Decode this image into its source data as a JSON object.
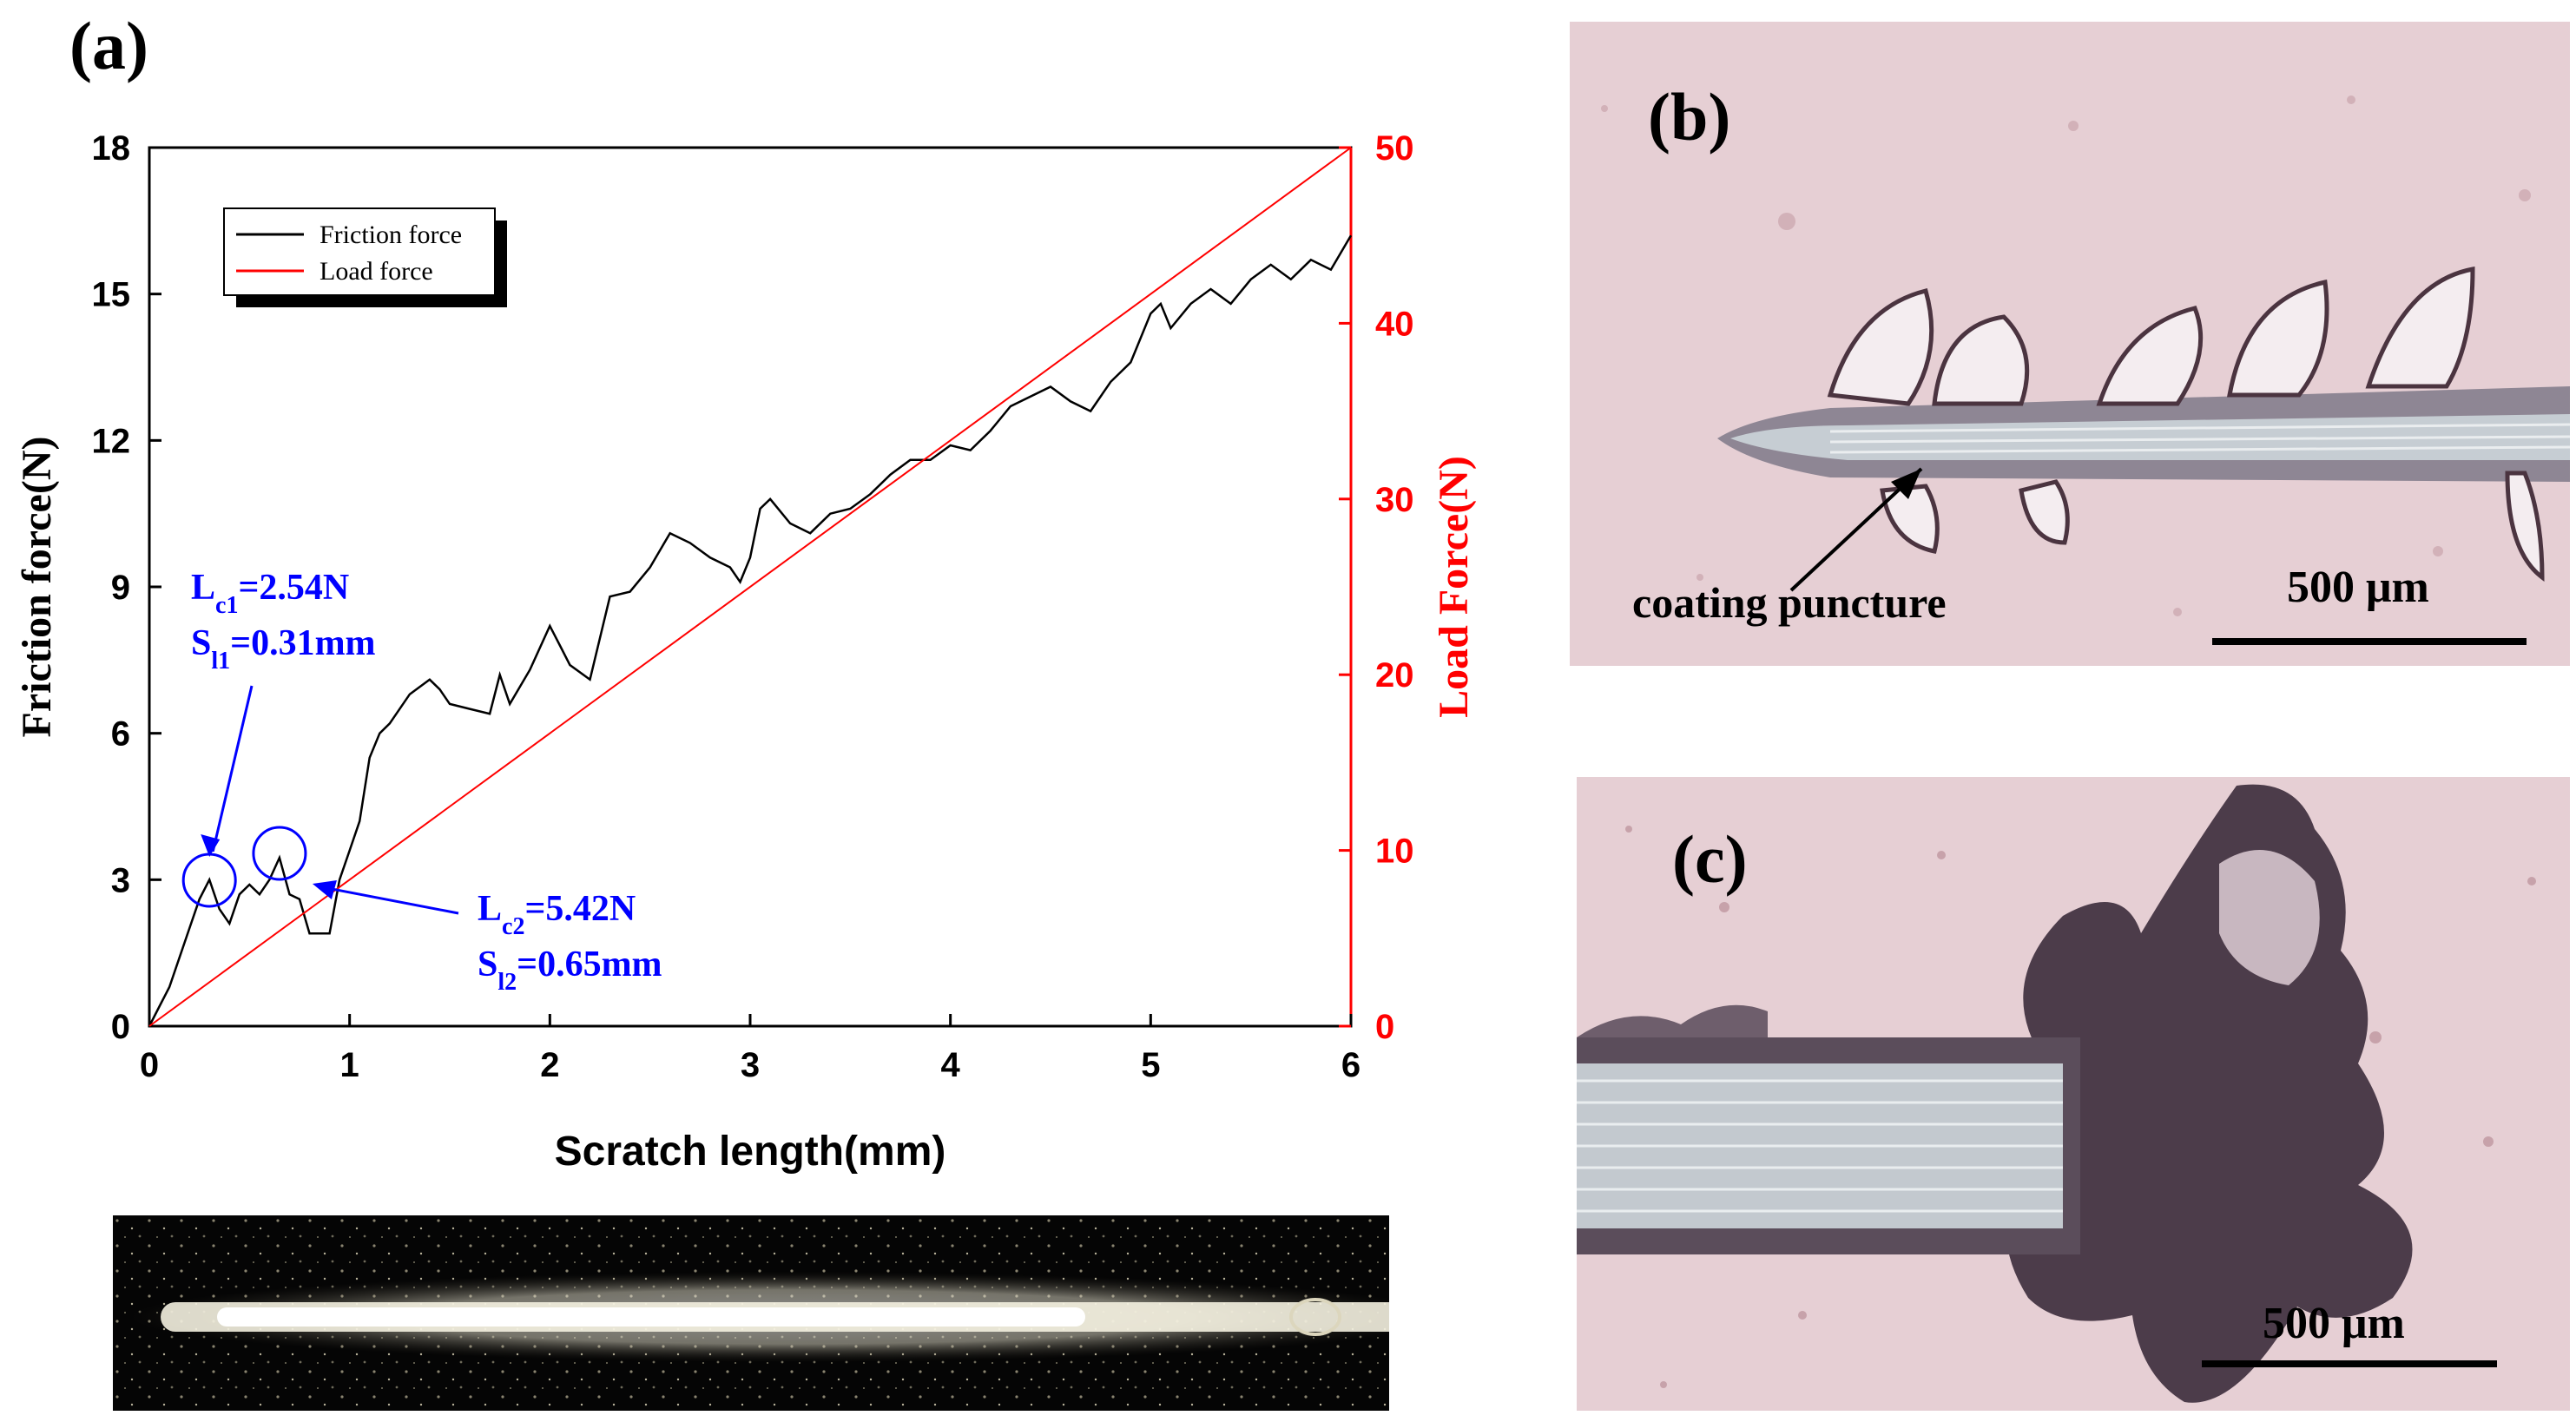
{
  "panels": {
    "a": "(a)",
    "b": "(b)",
    "c": "(c)"
  },
  "chart_data": {
    "type": "line",
    "xlabel": "Scratch length(mm)",
    "ylabel_left": "Friction force(N)",
    "ylabel_right": "Load Force(N)",
    "xlim": [
      0,
      6
    ],
    "ylim_left": [
      0,
      18
    ],
    "ylim_right": [
      0,
      50
    ],
    "xticks": [
      "0",
      "1",
      "2",
      "3",
      "4",
      "5",
      "6"
    ],
    "yticks_left": [
      "0",
      "3",
      "6",
      "9",
      "12",
      "15",
      "18"
    ],
    "yticks_right": [
      "0",
      "10",
      "20",
      "30",
      "40",
      "50"
    ],
    "legend_placement": "top-left",
    "series": [
      {
        "name": "Friction force",
        "color": "#000000",
        "axis": "left",
        "x": [
          0,
          0.05,
          0.1,
          0.15,
          0.2,
          0.25,
          0.3,
          0.35,
          0.4,
          0.45,
          0.5,
          0.55,
          0.6,
          0.65,
          0.7,
          0.75,
          0.8,
          0.85,
          0.9,
          0.95,
          1.0,
          1.05,
          1.1,
          1.15,
          1.2,
          1.3,
          1.4,
          1.45,
          1.5,
          1.6,
          1.7,
          1.75,
          1.8,
          1.9,
          2.0,
          2.05,
          2.1,
          2.2,
          2.3,
          2.4,
          2.5,
          2.6,
          2.7,
          2.8,
          2.9,
          2.95,
          3.0,
          3.05,
          3.1,
          3.2,
          3.3,
          3.4,
          3.5,
          3.6,
          3.7,
          3.8,
          3.9,
          4.0,
          4.1,
          4.2,
          4.3,
          4.4,
          4.5,
          4.6,
          4.7,
          4.8,
          4.9,
          5.0,
          5.05,
          5.1,
          5.2,
          5.3,
          5.4,
          5.5,
          5.6,
          5.7,
          5.8,
          5.9,
          6.0
        ],
        "y": [
          0,
          0.4,
          0.8,
          1.4,
          2.0,
          2.6,
          3.0,
          2.4,
          2.1,
          2.7,
          2.9,
          2.7,
          3.0,
          3.45,
          2.7,
          2.6,
          1.9,
          1.9,
          1.9,
          3.0,
          3.6,
          4.2,
          5.5,
          6.0,
          6.2,
          6.8,
          7.1,
          6.9,
          6.6,
          6.5,
          6.4,
          7.2,
          6.6,
          7.3,
          8.2,
          7.8,
          7.4,
          7.1,
          8.8,
          8.9,
          9.4,
          10.1,
          9.9,
          9.6,
          9.4,
          9.1,
          9.6,
          10.6,
          10.8,
          10.3,
          10.1,
          10.5,
          10.6,
          10.9,
          11.3,
          11.6,
          11.6,
          11.9,
          11.8,
          12.2,
          12.7,
          12.9,
          13.1,
          12.8,
          12.6,
          13.2,
          13.6,
          14.6,
          14.8,
          14.3,
          14.8,
          15.1,
          14.8,
          15.3,
          15.6,
          15.3,
          15.7,
          15.5,
          16.2
        ]
      },
      {
        "name": "Load force",
        "color": "#ff0000",
        "axis": "right",
        "x": [
          0,
          6
        ],
        "y": [
          0,
          50
        ]
      }
    ],
    "annotations": [
      {
        "label_main": "L",
        "label_sub": "c1",
        "label_rest": "=2.54N",
        "s_main": "S",
        "s_sub": "l1",
        "s_rest": "=0.31mm",
        "x": 0.3,
        "y": 2.9,
        "color": "#0000ff"
      },
      {
        "label_main": "L",
        "label_sub": "c2",
        "label_rest": "=5.42N",
        "s_main": "S",
        "s_sub": "l2",
        "s_rest": "=0.65mm",
        "x": 0.65,
        "y": 3.45,
        "color": "#0000ff"
      }
    ]
  },
  "micrograph_b": {
    "annotation": "coating puncture",
    "scalebar": "500 μm"
  },
  "micrograph_c": {
    "scalebar": "500 μm"
  }
}
